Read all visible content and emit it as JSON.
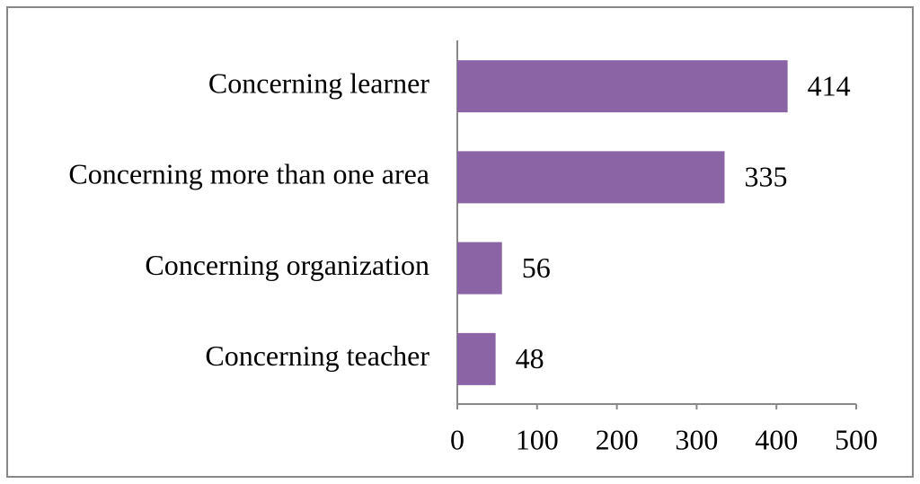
{
  "chart_data": {
    "type": "bar",
    "orientation": "horizontal",
    "categories": [
      "Concerning learner",
      "Concerning more than one area",
      "Concerning organization",
      "Concerning teacher"
    ],
    "values": [
      414,
      335,
      56,
      48
    ],
    "color": "#8b64a6",
    "xlim": [
      0,
      500
    ],
    "xticks": [
      0,
      100,
      200,
      300,
      400,
      500
    ],
    "grid": false
  }
}
